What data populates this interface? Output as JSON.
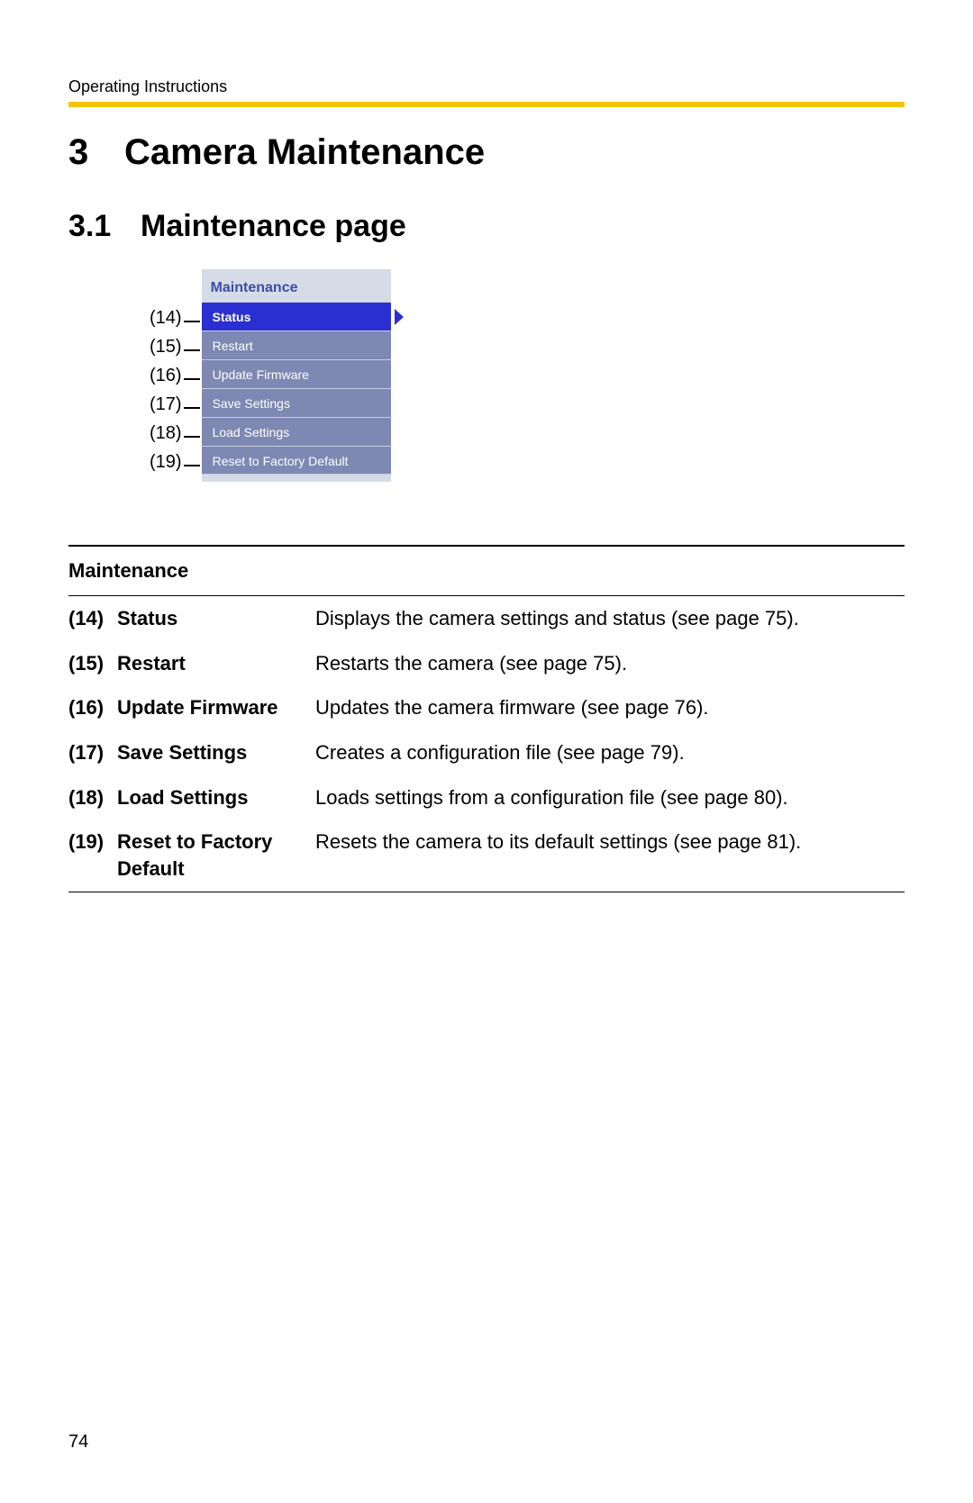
{
  "header": {
    "label": "Operating Instructions"
  },
  "accent_color": "#f5c400",
  "h1": {
    "number": "3",
    "title": "Camera Maintenance"
  },
  "h2": {
    "number": "3.1",
    "title": "Maintenance page"
  },
  "menu": {
    "title": "Maintenance",
    "panel_bg": "#d6dbe8",
    "title_color": "#3a4fa3",
    "item_bg": "#7d88b3",
    "active_bg": "#2b2fd1",
    "text_color": "#ffffff",
    "items": [
      {
        "callout": "(14)",
        "label": "Status",
        "active": true
      },
      {
        "callout": "(15)",
        "label": "Restart",
        "active": false
      },
      {
        "callout": "(16)",
        "label": "Update Firmware",
        "active": false
      },
      {
        "callout": "(17)",
        "label": "Save Settings",
        "active": false
      },
      {
        "callout": "(18)",
        "label": "Load Settings",
        "active": false
      },
      {
        "callout": "(19)",
        "label": "Reset to Factory Default",
        "active": false
      }
    ]
  },
  "definitions": {
    "heading": "Maintenance",
    "rows": [
      {
        "num": "(14)",
        "term": "Status",
        "desc": "Displays the camera settings and status (see page 75)."
      },
      {
        "num": "(15)",
        "term": "Restart",
        "desc": "Restarts the camera (see page 75)."
      },
      {
        "num": "(16)",
        "term": "Update Firmware",
        "desc": "Updates the camera firmware (see page 76)."
      },
      {
        "num": "(17)",
        "term": "Save Settings",
        "desc": "Creates a configuration file (see page 79)."
      },
      {
        "num": "(18)",
        "term": "Load Settings",
        "desc": "Loads settings from a configuration file (see page 80)."
      },
      {
        "num": "(19)",
        "term": "Reset to Factory Default",
        "desc": "Resets the camera to its default settings (see page 81)."
      }
    ]
  },
  "page_number": "74"
}
